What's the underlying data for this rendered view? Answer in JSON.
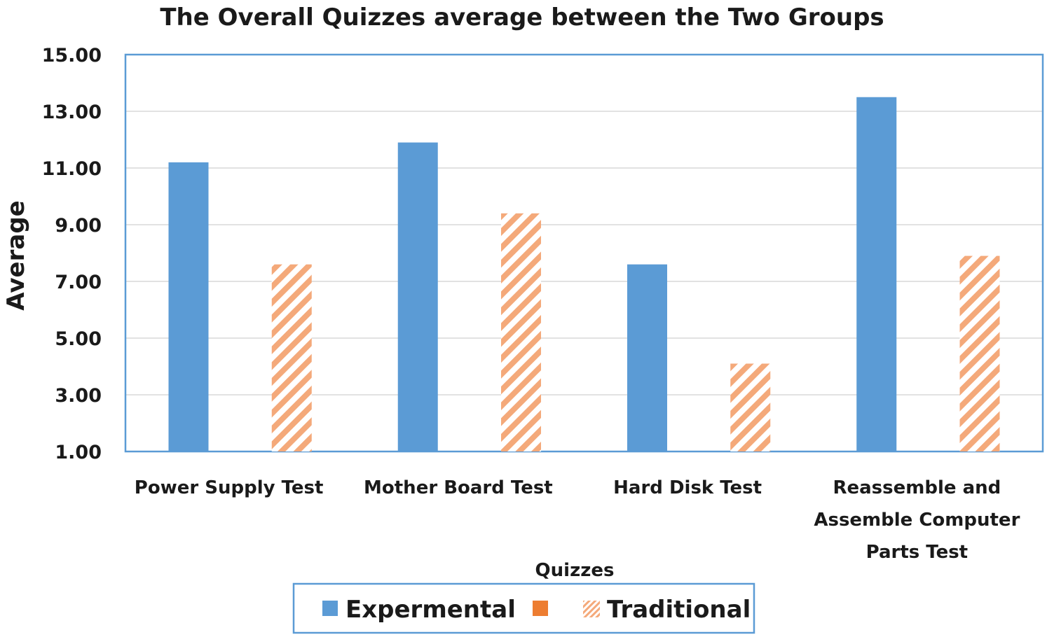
{
  "chart_data": {
    "type": "bar",
    "title": "The Overall Quizzes average between the Two Groups",
    "xlabel": "Quizzes",
    "ylabel": "Average",
    "ylim": [
      1,
      15
    ],
    "yticks": [
      "1.00",
      "3.00",
      "5.00",
      "7.00",
      "9.00",
      "11.00",
      "13.00",
      "15.00"
    ],
    "ytick_values": [
      1,
      3,
      5,
      7,
      9,
      11,
      13,
      15
    ],
    "categories": [
      "Power Supply Test",
      "Mother Board Test",
      "Hard Disk Test",
      "Reassemble and Assemble Computer Parts Test"
    ],
    "category_lines": [
      [
        "Power Supply Test"
      ],
      [
        "Mother Board Test"
      ],
      [
        "Hard Disk Test"
      ],
      [
        "Reassemble and",
        "Assemble Computer",
        "Parts Test"
      ]
    ],
    "series": [
      {
        "name": "Expermental",
        "values": [
          11.2,
          11.9,
          7.6,
          13.5
        ],
        "color": "#5b9bd5",
        "pattern": "solid"
      },
      {
        "name": "Traditional",
        "values": [
          7.6,
          9.4,
          4.1,
          7.9
        ],
        "color": "#ed7d31",
        "pattern": "diagonal-hatch"
      }
    ],
    "grid": true,
    "legend_position": "bottom",
    "frame_color": "#5b9bd5"
  }
}
